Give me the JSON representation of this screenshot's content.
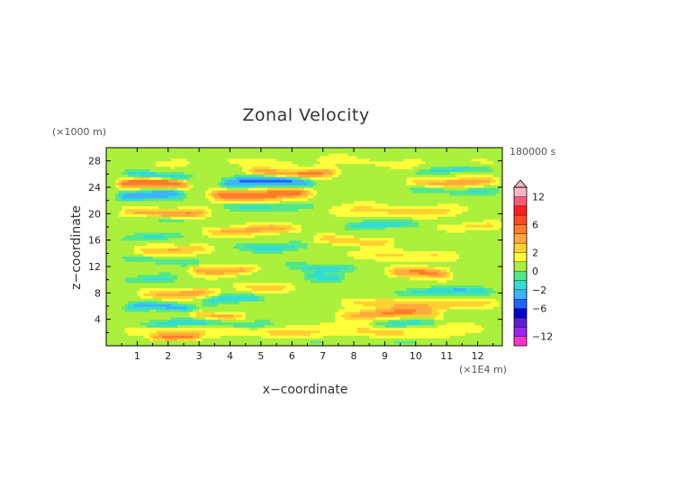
{
  "chart_data": {
    "type": "heatmap",
    "title": "Zonal Velocity",
    "xlabel": "x−coordinate",
    "ylabel": "z−coordinate",
    "x_unit": "(×1E4 m)",
    "y_unit": "(×1000 m)",
    "time_label": "180000 s",
    "xlim": [
      0,
      12.8
    ],
    "ylim": [
      0,
      30
    ],
    "x_ticks": [
      1,
      2,
      3,
      4,
      5,
      6,
      7,
      8,
      9,
      10,
      11,
      12
    ],
    "x_tick_labels": [
      "1",
      "2",
      "3",
      "4",
      "5",
      "6",
      "7",
      "8",
      "9",
      "10",
      "11",
      "12"
    ],
    "y_ticks": [
      4,
      8,
      12,
      16,
      20,
      24,
      28
    ],
    "y_tick_labels": [
      "4",
      "8",
      "12",
      "16",
      "20",
      "24",
      "28"
    ],
    "colorbar": {
      "levels": [
        -14,
        -12,
        -10,
        -8,
        -6,
        -4,
        -2,
        -1,
        0,
        1,
        2,
        3,
        4,
        6,
        8,
        10,
        12,
        14
      ],
      "colors": [
        "#ff33cc",
        "#a020f0",
        "#5a1ecf",
        "#0000cd",
        "#1e64ff",
        "#3cb4ff",
        "#33dcd2",
        "#55e68a",
        "#aaf03c",
        "#ffff3c",
        "#ffd232",
        "#ffaa3c",
        "#ff7d28",
        "#ff4b1e",
        "#ff1e1e",
        "#ff5a78",
        "#ffb4c8"
      ],
      "tick_values": [
        12,
        6,
        2,
        0,
        -2,
        -6,
        -12
      ],
      "tick_labels": [
        "12",
        "6",
        "2",
        "0",
        "−2",
        "−6",
        "−12"
      ],
      "extend": "max"
    },
    "bands": [
      {
        "z": 0.8,
        "x0": 0,
        "x1": 12.8,
        "v": -0.5,
        "h": 0.5
      },
      {
        "z": 2.2,
        "x0": 0,
        "x1": 12.8,
        "v": 1.6,
        "h": 0.9
      },
      {
        "z": 1.5,
        "x0": 1.3,
        "x1": 3.2,
        "v": 3.2,
        "h": 0.6
      },
      {
        "z": 3.4,
        "x0": 0.8,
        "x1": 5.5,
        "v": -2.2,
        "h": 0.6
      },
      {
        "z": 3.5,
        "x0": 8.5,
        "x1": 10.8,
        "v": -1.8,
        "h": 0.6
      },
      {
        "z": 4.9,
        "x0": 7.3,
        "x1": 11.0,
        "v": 3.4,
        "h": 0.8
      },
      {
        "z": 4.8,
        "x0": 2.6,
        "x1": 4.6,
        "v": 2.5,
        "h": 0.6
      },
      {
        "z": 5.9,
        "x0": 0.5,
        "x1": 3.0,
        "v": -3.2,
        "h": 0.6
      },
      {
        "z": 6.4,
        "x0": 7.5,
        "x1": 12.8,
        "v": 2.4,
        "h": 0.7
      },
      {
        "z": 7.0,
        "x0": 3.0,
        "x1": 5.2,
        "v": -2.5,
        "h": 0.6
      },
      {
        "z": 8.0,
        "x0": 0.9,
        "x1": 3.8,
        "v": 2.8,
        "h": 0.7
      },
      {
        "z": 8.3,
        "x0": 9.2,
        "x1": 12.8,
        "v": -2.3,
        "h": 0.6
      },
      {
        "z": 9.0,
        "x0": 4.0,
        "x1": 6.2,
        "v": 1.6,
        "h": 0.7
      },
      {
        "z": 10.4,
        "x0": 6.3,
        "x1": 7.8,
        "v": -2.2,
        "h": 0.6
      },
      {
        "z": 10.2,
        "x0": 0.4,
        "x1": 2.4,
        "v": -1.5,
        "h": 0.6
      },
      {
        "z": 11.0,
        "x0": 9.0,
        "x1": 11.2,
        "v": 3.6,
        "h": 0.8
      },
      {
        "z": 11.6,
        "x0": 2.6,
        "x1": 5.0,
        "v": 3.2,
        "h": 0.7
      },
      {
        "z": 12.0,
        "x0": 5.6,
        "x1": 8.2,
        "v": -1.9,
        "h": 0.6
      },
      {
        "z": 13.0,
        "x0": 0.3,
        "x1": 3.2,
        "v": -1.4,
        "h": 0.5
      },
      {
        "z": 13.8,
        "x0": 7.5,
        "x1": 11.5,
        "v": 1.6,
        "h": 0.7
      },
      {
        "z": 14.6,
        "x0": 0.8,
        "x1": 3.6,
        "v": 2.4,
        "h": 0.7
      },
      {
        "z": 15.1,
        "x0": 4.0,
        "x1": 6.6,
        "v": -2.0,
        "h": 0.6
      },
      {
        "z": 16.0,
        "x0": 6.6,
        "x1": 9.4,
        "v": 2.3,
        "h": 0.6
      },
      {
        "z": 16.5,
        "x0": 0.4,
        "x1": 2.6,
        "v": -1.6,
        "h": 0.5
      },
      {
        "z": 17.6,
        "x0": 3.0,
        "x1": 6.4,
        "v": 3.0,
        "h": 0.7
      },
      {
        "z": 18.3,
        "x0": 7.6,
        "x1": 10.2,
        "v": -2.4,
        "h": 0.6
      },
      {
        "z": 18.2,
        "x0": 10.6,
        "x1": 12.8,
        "v": 1.8,
        "h": 0.6
      },
      {
        "z": 19.4,
        "x0": 0.6,
        "x1": 2.8,
        "v": -1.5,
        "h": 0.5
      },
      {
        "z": 20.2,
        "x0": 0.4,
        "x1": 3.4,
        "v": 3.6,
        "h": 0.7
      },
      {
        "z": 20.5,
        "x0": 7.0,
        "x1": 12.0,
        "v": 1.8,
        "h": 0.8
      },
      {
        "z": 21.2,
        "x0": 3.6,
        "x1": 6.8,
        "v": -1.8,
        "h": 0.6
      },
      {
        "z": 22.9,
        "x0": 0.2,
        "x1": 2.6,
        "v": -4.0,
        "h": 0.7
      },
      {
        "z": 23.0,
        "x0": 3.2,
        "x1": 6.8,
        "v": 4.8,
        "h": 0.9
      },
      {
        "z": 23.6,
        "x0": 9.6,
        "x1": 12.8,
        "v": -1.6,
        "h": 0.6
      },
      {
        "z": 24.5,
        "x0": 0.2,
        "x1": 2.8,
        "v": 5.2,
        "h": 0.7
      },
      {
        "z": 24.8,
        "x0": 3.6,
        "x1": 6.8,
        "v": -5.5,
        "h": 0.8
      },
      {
        "z": 24.9,
        "x0": 9.6,
        "x1": 12.8,
        "v": 3.2,
        "h": 0.7
      },
      {
        "z": 25.9,
        "x0": 0.5,
        "x1": 2.8,
        "v": -2.6,
        "h": 0.5
      },
      {
        "z": 26.3,
        "x0": 4.4,
        "x1": 7.6,
        "v": 3.8,
        "h": 0.7
      },
      {
        "z": 26.6,
        "x0": 9.8,
        "x1": 12.6,
        "v": -1.8,
        "h": 0.5
      },
      {
        "z": 27.9,
        "x0": 0.5,
        "x1": 12.8,
        "v": 0.6,
        "h": 0.8
      }
    ]
  }
}
